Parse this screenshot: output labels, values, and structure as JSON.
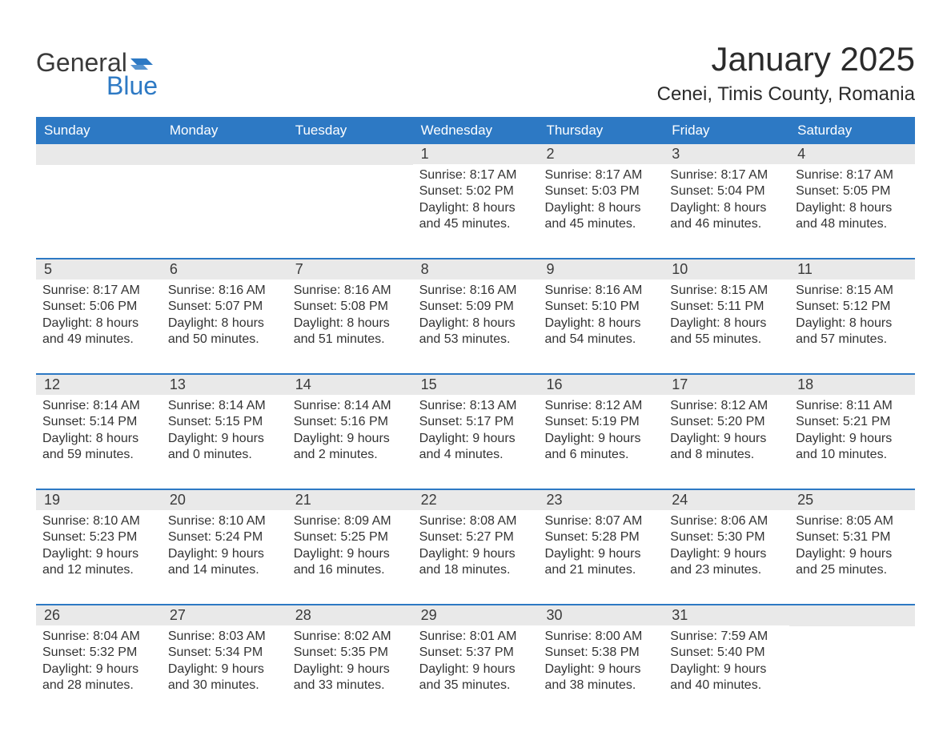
{
  "logo": {
    "word1": "General",
    "word2": "Blue",
    "flag_color": "#2d79c4"
  },
  "title": "January 2025",
  "location": "Cenei, Timis County, Romania",
  "colors": {
    "header_bg": "#2d79c4",
    "header_text": "#ffffff",
    "daynum_bg": "#e9e9e9",
    "text": "#333333",
    "week_divider": "#2d79c4"
  },
  "fonts": {
    "title_size": 42,
    "location_size": 24,
    "header_size": 17,
    "daynum_size": 18,
    "info_size": 16
  },
  "day_headers": [
    "Sunday",
    "Monday",
    "Tuesday",
    "Wednesday",
    "Thursday",
    "Friday",
    "Saturday"
  ],
  "weeks": [
    [
      null,
      null,
      null,
      {
        "n": "1",
        "sunrise": "8:17 AM",
        "sunset": "5:02 PM",
        "dl": "8 hours and 45 minutes."
      },
      {
        "n": "2",
        "sunrise": "8:17 AM",
        "sunset": "5:03 PM",
        "dl": "8 hours and 45 minutes."
      },
      {
        "n": "3",
        "sunrise": "8:17 AM",
        "sunset": "5:04 PM",
        "dl": "8 hours and 46 minutes."
      },
      {
        "n": "4",
        "sunrise": "8:17 AM",
        "sunset": "5:05 PM",
        "dl": "8 hours and 48 minutes."
      }
    ],
    [
      {
        "n": "5",
        "sunrise": "8:17 AM",
        "sunset": "5:06 PM",
        "dl": "8 hours and 49 minutes."
      },
      {
        "n": "6",
        "sunrise": "8:16 AM",
        "sunset": "5:07 PM",
        "dl": "8 hours and 50 minutes."
      },
      {
        "n": "7",
        "sunrise": "8:16 AM",
        "sunset": "5:08 PM",
        "dl": "8 hours and 51 minutes."
      },
      {
        "n": "8",
        "sunrise": "8:16 AM",
        "sunset": "5:09 PM",
        "dl": "8 hours and 53 minutes."
      },
      {
        "n": "9",
        "sunrise": "8:16 AM",
        "sunset": "5:10 PM",
        "dl": "8 hours and 54 minutes."
      },
      {
        "n": "10",
        "sunrise": "8:15 AM",
        "sunset": "5:11 PM",
        "dl": "8 hours and 55 minutes."
      },
      {
        "n": "11",
        "sunrise": "8:15 AM",
        "sunset": "5:12 PM",
        "dl": "8 hours and 57 minutes."
      }
    ],
    [
      {
        "n": "12",
        "sunrise": "8:14 AM",
        "sunset": "5:14 PM",
        "dl": "8 hours and 59 minutes."
      },
      {
        "n": "13",
        "sunrise": "8:14 AM",
        "sunset": "5:15 PM",
        "dl": "9 hours and 0 minutes."
      },
      {
        "n": "14",
        "sunrise": "8:14 AM",
        "sunset": "5:16 PM",
        "dl": "9 hours and 2 minutes."
      },
      {
        "n": "15",
        "sunrise": "8:13 AM",
        "sunset": "5:17 PM",
        "dl": "9 hours and 4 minutes."
      },
      {
        "n": "16",
        "sunrise": "8:12 AM",
        "sunset": "5:19 PM",
        "dl": "9 hours and 6 minutes."
      },
      {
        "n": "17",
        "sunrise": "8:12 AM",
        "sunset": "5:20 PM",
        "dl": "9 hours and 8 minutes."
      },
      {
        "n": "18",
        "sunrise": "8:11 AM",
        "sunset": "5:21 PM",
        "dl": "9 hours and 10 minutes."
      }
    ],
    [
      {
        "n": "19",
        "sunrise": "8:10 AM",
        "sunset": "5:23 PM",
        "dl": "9 hours and 12 minutes."
      },
      {
        "n": "20",
        "sunrise": "8:10 AM",
        "sunset": "5:24 PM",
        "dl": "9 hours and 14 minutes."
      },
      {
        "n": "21",
        "sunrise": "8:09 AM",
        "sunset": "5:25 PM",
        "dl": "9 hours and 16 minutes."
      },
      {
        "n": "22",
        "sunrise": "8:08 AM",
        "sunset": "5:27 PM",
        "dl": "9 hours and 18 minutes."
      },
      {
        "n": "23",
        "sunrise": "8:07 AM",
        "sunset": "5:28 PM",
        "dl": "9 hours and 21 minutes."
      },
      {
        "n": "24",
        "sunrise": "8:06 AM",
        "sunset": "5:30 PM",
        "dl": "9 hours and 23 minutes."
      },
      {
        "n": "25",
        "sunrise": "8:05 AM",
        "sunset": "5:31 PM",
        "dl": "9 hours and 25 minutes."
      }
    ],
    [
      {
        "n": "26",
        "sunrise": "8:04 AM",
        "sunset": "5:32 PM",
        "dl": "9 hours and 28 minutes."
      },
      {
        "n": "27",
        "sunrise": "8:03 AM",
        "sunset": "5:34 PM",
        "dl": "9 hours and 30 minutes."
      },
      {
        "n": "28",
        "sunrise": "8:02 AM",
        "sunset": "5:35 PM",
        "dl": "9 hours and 33 minutes."
      },
      {
        "n": "29",
        "sunrise": "8:01 AM",
        "sunset": "5:37 PM",
        "dl": "9 hours and 35 minutes."
      },
      {
        "n": "30",
        "sunrise": "8:00 AM",
        "sunset": "5:38 PM",
        "dl": "9 hours and 38 minutes."
      },
      {
        "n": "31",
        "sunrise": "7:59 AM",
        "sunset": "5:40 PM",
        "dl": "9 hours and 40 minutes."
      },
      null
    ]
  ],
  "labels": {
    "sunrise": "Sunrise: ",
    "sunset": "Sunset: ",
    "daylight": "Daylight: "
  }
}
